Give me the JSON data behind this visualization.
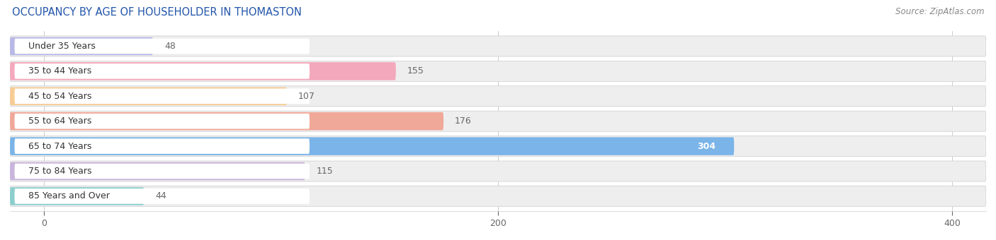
{
  "title": "OCCUPANCY BY AGE OF HOUSEHOLDER IN THOMASTON",
  "source": "Source: ZipAtlas.com",
  "categories": [
    "Under 35 Years",
    "35 to 44 Years",
    "45 to 54 Years",
    "55 to 64 Years",
    "65 to 74 Years",
    "75 to 84 Years",
    "85 Years and Over"
  ],
  "values": [
    48,
    155,
    107,
    176,
    304,
    115,
    44
  ],
  "bar_colors": [
    "#b8b8e8",
    "#f4a8bc",
    "#f8cc94",
    "#f0a898",
    "#7ab4e8",
    "#c8b4dc",
    "#8ccece"
  ],
  "xlim_data": [
    0,
    400
  ],
  "value_label_color_inside": "#ffffff",
  "value_label_color_outside": "#666666",
  "title_fontsize": 10.5,
  "source_fontsize": 8.5,
  "label_fontsize": 9,
  "value_fontsize": 9,
  "tick_fontsize": 9,
  "background_color": "#ffffff",
  "row_track_color": "#eeeeee",
  "row_sep_color": "#dddddd",
  "label_box_color": "#ffffff"
}
